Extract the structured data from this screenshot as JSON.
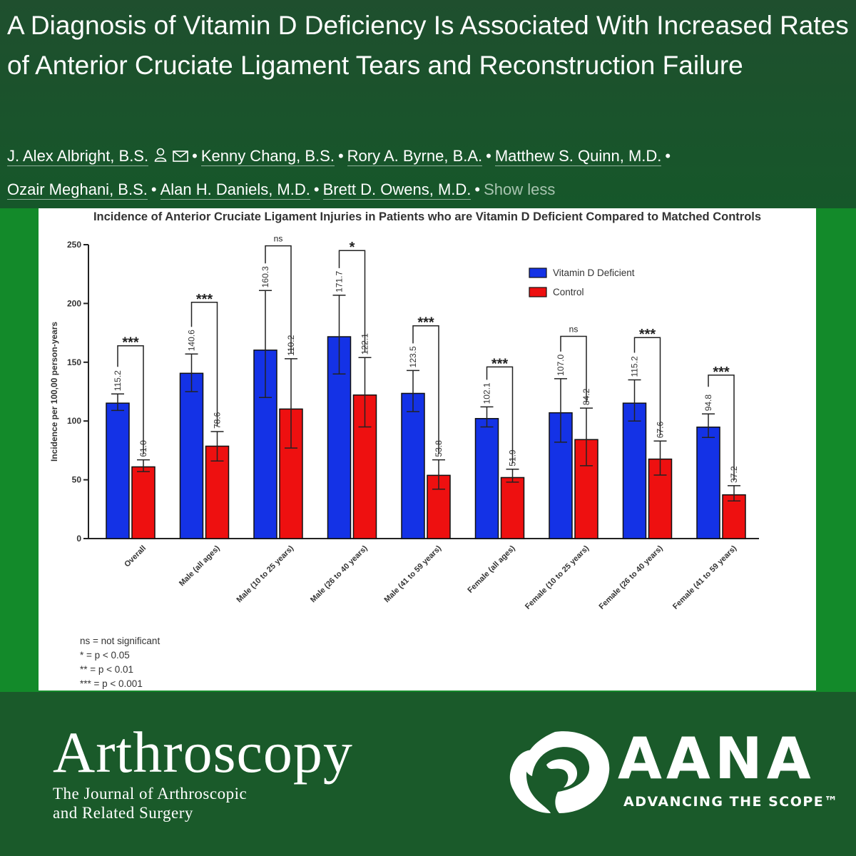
{
  "header": {
    "title": "A Diagnosis of Vitamin D Deficiency Is Associated With Increased Rates of Anterior Cruciate Ligament Tears and Reconstruction Failure",
    "authors": [
      "J. Alex Albright, B.S.",
      "Kenny Chang, B.S.",
      "Rory A. Byrne, B.A.",
      "Matthew S. Quinn, M.D.",
      "Ozair Meghani, B.S.",
      "Alan H. Daniels, M.D.",
      "Brett D. Owens, M.D."
    ],
    "show_less": "Show less",
    "icons": [
      "person-icon",
      "mail-icon"
    ]
  },
  "chart_data": {
    "type": "bar",
    "title": "Incidence of Anterior Cruciate Ligament Injuries in Patients who are Vitamin D Deficient Compared to Matched Controls",
    "ylabel": "Incidence per 100,00 person-years",
    "xlabel": "",
    "ylim": [
      0,
      250
    ],
    "yticks": [
      0,
      50,
      100,
      150,
      200,
      250
    ],
    "categories": [
      "Overall",
      "Male (all ages)",
      "Male (10 to 25 years)",
      "Male (26 to 40 years)",
      "Male (41 to 59 years)",
      "Female (all ages)",
      "Female (10 to 25 years)",
      "Female (26 to 40 years)",
      "Female (41 to 59 years)"
    ],
    "series": [
      {
        "name": "Vitamin D Deficient",
        "color": "#1432e6",
        "values": [
          115.2,
          140.6,
          160.3,
          171.7,
          123.5,
          102.1,
          107.0,
          115.2,
          94.8
        ],
        "labels": [
          "115.2",
          "140.6",
          "160.3",
          "171.7",
          "123.5",
          "102.1",
          "107.0",
          "115.2",
          "94.8"
        ],
        "error_low": [
          109,
          125,
          120,
          140,
          108,
          95,
          82,
          100,
          86
        ],
        "error_high": [
          123,
          157,
          211,
          207,
          143,
          112,
          136,
          135,
          106
        ]
      },
      {
        "name": "Control",
        "color": "#ee1010",
        "values": [
          61.0,
          78.6,
          110.2,
          122.1,
          53.8,
          51.9,
          84.2,
          67.6,
          37.2
        ],
        "labels": [
          "61.0",
          "78.6",
          "110.2",
          "122.1",
          "53.8",
          "51.9",
          "84.2",
          "67.6",
          "37.2"
        ],
        "error_low": [
          57,
          66,
          77,
          95,
          42,
          48,
          62,
          54,
          32
        ],
        "error_high": [
          67,
          91,
          153,
          154,
          67,
          59,
          111,
          83,
          45
        ]
      }
    ],
    "significance": [
      {
        "label": "***",
        "level": 164
      },
      {
        "label": "***",
        "level": 201
      },
      {
        "label": "ns",
        "level": 249
      },
      {
        "label": "*",
        "level": 245
      },
      {
        "label": "***",
        "level": 181
      },
      {
        "label": "***",
        "level": 146
      },
      {
        "label": "ns",
        "level": 172
      },
      {
        "label": "***",
        "level": 171
      },
      {
        "label": "***",
        "level": 139
      }
    ],
    "legend": {
      "position": "top-right",
      "entries": [
        "Vitamin D Deficient",
        "Control"
      ]
    },
    "footnote": [
      "ns = not significant",
      "* = p < 0.05",
      "** = p < 0.01",
      "*** = p < 0.001"
    ]
  },
  "footer": {
    "journal_name": "Arthroscopy",
    "journal_subtitle_1": "The Journal of Arthroscopic",
    "journal_subtitle_2": "and Related Surgery",
    "aana_name": "AANA",
    "aana_tagline": "ADVANCING THE SCOPE™",
    "aana_icon": "aana-knee-logo-icon"
  }
}
